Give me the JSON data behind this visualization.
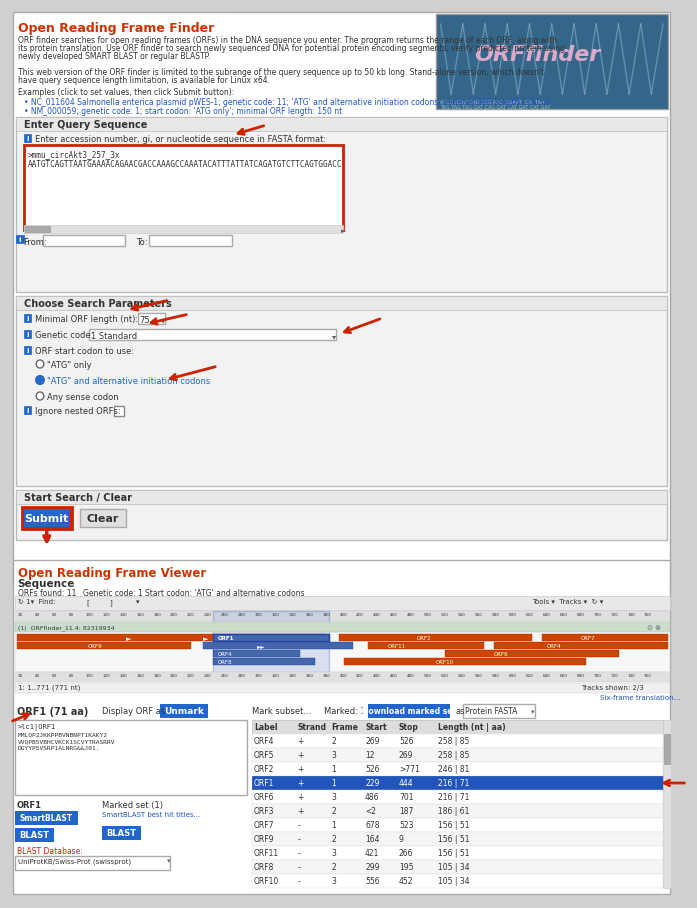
{
  "title": "Open Reading Frame Finder",
  "title_color": "#cc3300",
  "bg_color": "#ffffff",
  "panel_bg": "#f0f0f0",
  "border_color": "#cccccc",
  "section_bg": "#e8e8e8",
  "blue_btn": "#2266cc",
  "blue_btn2": "#3377dd",
  "red_arrow": "#cc2200",
  "highlight_blue": "#3355aa",
  "highlight_row_bg": "#2255bb",
  "table_header_bg": "#dddddd",
  "text_color": "#333333",
  "link_color": "#2255cc",
  "orange_bar": "#cc4400",
  "dna_bg": "#336688",
  "top_title_text": "Open Reading Frame Finder",
  "description1": "ORF finder searches for open reading frames (ORFs) in the DNA sequence you enter. The program returns the range of each ORF, along with",
  "description2": "its protein translation. Use ORF finder to search newly sequenced DNA for potential protein encoding segments, verify predicted protein using",
  "description3": "newly developed SMART BLAST or regular BLASTP.",
  "description4": "This web version of the ORF finder is limited to the subrange of the query sequence up to 50 kb long. Stand-alone version, which doesn't",
  "description5": "have query sequence length limitation, is available for Linux x64.",
  "examples_label": "Examples (click to set values, then click Submit button):",
  "example1": "NC_011604 Salmonella enterica plasmid pWES-1; genetic code: 11; 'ATG' and alternative initiation codons; minimal ORF length: 300 nt",
  "example2": "NM_000059; genetic code: 1; start codon: 'ATG only'; minimal ORF length: 150 nt",
  "section1_title": "Enter Query Sequence",
  "label_accession": "Enter accession number, gi, or nucleotide sequence in FASTA format:",
  "fasta_text_line1": ">mmu_circAkt3_257_3x",
  "fasta_text_line2": "AATGTCAGTTAATGAAAACAGAACGACCAAAGCCAAATACATTTATTATCAGATGTCTTCAGTGGACC",
  "from_label": "From:",
  "to_label": "To:",
  "section2_title": "Choose Search Parameters",
  "min_orf_label": "Minimal ORF length (nt):",
  "min_orf_value": "75",
  "genetic_code_label": "Genetic code:",
  "genetic_code_value": "1 Standard",
  "orf_start_label": "ORF start codon to use:",
  "radio1": "\"ATG\" only",
  "radio2": "\"ATG\" and alternative initiation codons",
  "radio3": "Any sense codon",
  "ignore_label": "Ignore nested ORFs:",
  "section3_title": "Start Search / Clear",
  "submit_btn": "Submit",
  "clear_btn": "Clear",
  "viewer_title": "Open Reading Frame Viewer",
  "sequence_label": "Sequence",
  "orfs_found": "ORFs found: 11",
  "genetic_code_info": "Genetic code: 1",
  "start_codon_info": "Start codon: 'ATG' and alternative codons",
  "orf1_label": "ORF1 (71 aa)",
  "display_orf": "Display ORF as...",
  "unmark_btn": "Unmark",
  "orf1_seq_header": ">lc1|ORF1",
  "orf1_seq": "MMLQP2JKKPPBVNBNPT1KAKY2VVQPB5VBHCVKCK1SCVYTRASRRV\nDGYYP5VSRP1ALNRG&&J01.",
  "mark_subset": "Mark subset...",
  "marked": "Marked: 1",
  "download_btn": "Download marked set",
  "as_label": "as",
  "format_select": "Protein FASTA",
  "table_headers": [
    "Label",
    "Strand",
    "Frame",
    "Start",
    "Stop",
    "Length (nt | aa)"
  ],
  "table_data": [
    [
      "ORF4",
      "+",
      "2",
      "269",
      "526",
      "258 | 85"
    ],
    [
      "ORF5",
      "+",
      "3",
      "12",
      "269",
      "258 | 85"
    ],
    [
      "ORF2",
      "+",
      "1",
      "526",
      ">771",
      "246 | 81"
    ],
    [
      "ORF1",
      "+",
      "1",
      "229",
      "444",
      "216 | 71"
    ],
    [
      "ORF6",
      "+",
      "3",
      "486",
      "701",
      "216 | 71"
    ],
    [
      "ORF3",
      "+",
      "2",
      "<2",
      "187",
      "186 | 61"
    ],
    [
      "ORF7",
      "-",
      "1",
      "678",
      "523",
      "156 | 51"
    ],
    [
      "ORF9",
      "-",
      "2",
      "164",
      "9",
      "156 | 51"
    ],
    [
      "ORF11",
      "-",
      "3",
      "421",
      "266",
      "156 | 51"
    ],
    [
      "ORF8",
      "-",
      "2",
      "299",
      "195",
      "105 | 34"
    ],
    [
      "ORF10",
      "-",
      "3",
      "556",
      "452",
      "105 | 34"
    ]
  ],
  "highlighted_row": 3,
  "orf1_btn_color": "#2266cc",
  "smartblast_btn": "SmartBLAST",
  "blast_btn": "BLAST",
  "blast_db_label": "BLAST Database:",
  "blast_db_value": "UniProtKB/Swiss-Prot (swissprot)",
  "marked_set_label": "Marked set (1)",
  "smartblast_best": "SmartBLAST best hit titles...",
  "blast_btn2": "BLAST"
}
